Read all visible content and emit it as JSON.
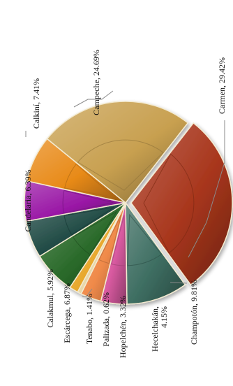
{
  "chart_data": {
    "type": "pie",
    "title": "",
    "slices": [
      {
        "name": "Carmen",
        "value": 29.42,
        "label": "Carmen, 29.42%",
        "color": "#a8361c"
      },
      {
        "name": "Champotón",
        "value": 9.81,
        "label": "Champotón, 9.81%",
        "color": "#3e6e62"
      },
      {
        "name": "Hecelchakán",
        "value": 4.15,
        "label_lines": [
          "Hecelchakán,",
          "4.15%"
        ],
        "color": "#d85aa0"
      },
      {
        "name": "Hopelchén",
        "value": 3.32,
        "label": "Hopelchén, 3.32%",
        "color": "#f08a4a"
      },
      {
        "name": "Palizada",
        "value": 0.62,
        "label": "Palizada, 0.62%",
        "color": "#e8d6a8"
      },
      {
        "name": "Tenabo",
        "value": 1.41,
        "label": "Tenabo, 1.41%",
        "color": "#e8a82c"
      },
      {
        "name": "Escárcega",
        "value": 6.87,
        "label": "Escárcega, 6.87%",
        "color": "#2a6a2a"
      },
      {
        "name": "Calakmul",
        "value": 5.92,
        "label": "Calakmul, 5.92%",
        "color": "#1f4a44"
      },
      {
        "name": "Candelaria",
        "value": 6.39,
        "label": "Candelaria, 6.39%",
        "color": "#9a18a6"
      },
      {
        "name": "Calkiní",
        "value": 7.41,
        "label": "Calkiní, 7.41%",
        "color": "#e88a18"
      },
      {
        "name": "Campeche",
        "value": 24.69,
        "label": "Campeche, 24.69%",
        "color": "#c8a050"
      }
    ]
  }
}
